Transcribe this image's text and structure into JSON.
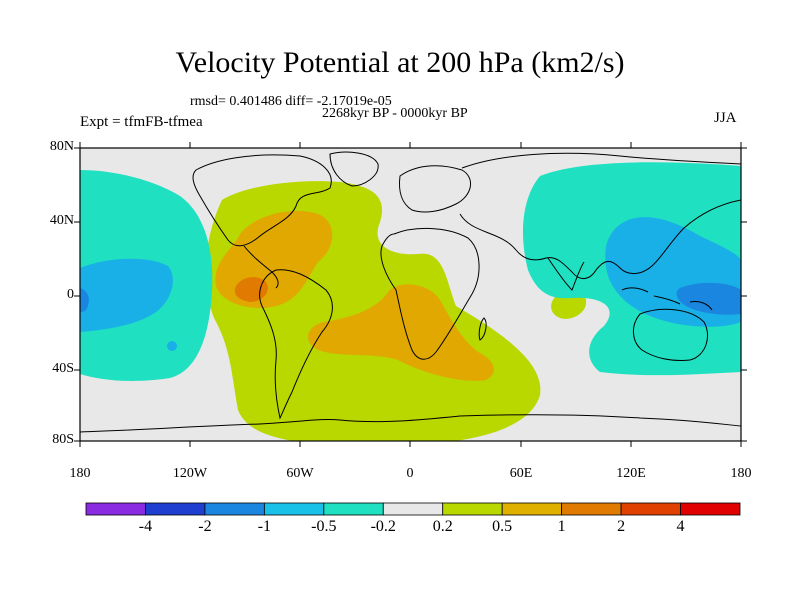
{
  "header": {
    "title": "Velocity Potential at 200 hPa (km2/s)",
    "stats": "rmsd= 0.401486 diff= -2.17019e-05",
    "period": "2268kyr BP - 0000kyr BP",
    "experiment": "Expt = tfmFB-tfmea",
    "season": "JJA"
  },
  "axes": {
    "lat_labels": [
      "80N",
      "40N",
      "0",
      "40S",
      "80S"
    ],
    "lon_labels": [
      "180",
      "120W",
      "60W",
      "0",
      "60E",
      "120E",
      "180"
    ]
  },
  "colorbar": {
    "labels": [
      "-4",
      "-2",
      "-1",
      "-0.5",
      "-0.2",
      "0.2",
      "0.5",
      "1",
      "2",
      "4"
    ],
    "colors": [
      "#8a2be2",
      "#1f3fd0",
      "#1a86e0",
      "#19c0e8",
      "#1fe0c0",
      "#e8e8e8",
      "#b8d800",
      "#e0b000",
      "#e07a00",
      "#e04000",
      "#e00000"
    ]
  },
  "map_colors": {
    "neutral": "#e8e8e8",
    "pos_light": "#b8d800",
    "pos_mid": "#e0a800",
    "pos_strong": "#e07a00",
    "neg_light": "#1fe0c0",
    "neg_mid": "#19b0e8",
    "neg_strong": "#1a86e0",
    "coast": "#000000"
  }
}
